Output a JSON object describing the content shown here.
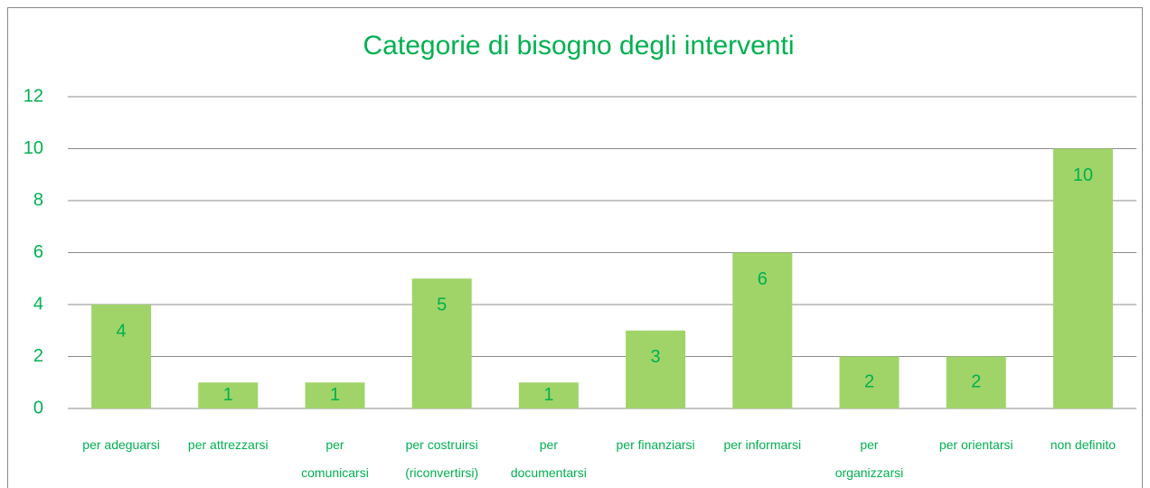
{
  "chart_data": {
    "type": "bar",
    "title": "Categorie di bisogno degli interventi",
    "categories": [
      "per adeguarsi",
      "per attrezzarsi",
      "per\ncomunicarsi",
      "per costruirsi\n(riconvertirsi)",
      "per\ndocumentarsi",
      "per finanziarsi",
      "per informarsi",
      "per\norganizzarsi",
      "per orientarsi",
      "non definito"
    ],
    "values": [
      4,
      1,
      1,
      5,
      1,
      3,
      6,
      2,
      2,
      10
    ],
    "color": "#a0d468",
    "ylim": [
      0,
      12
    ],
    "yticks": [
      0,
      2,
      4,
      6,
      8,
      10,
      12
    ],
    "grid": true
  }
}
